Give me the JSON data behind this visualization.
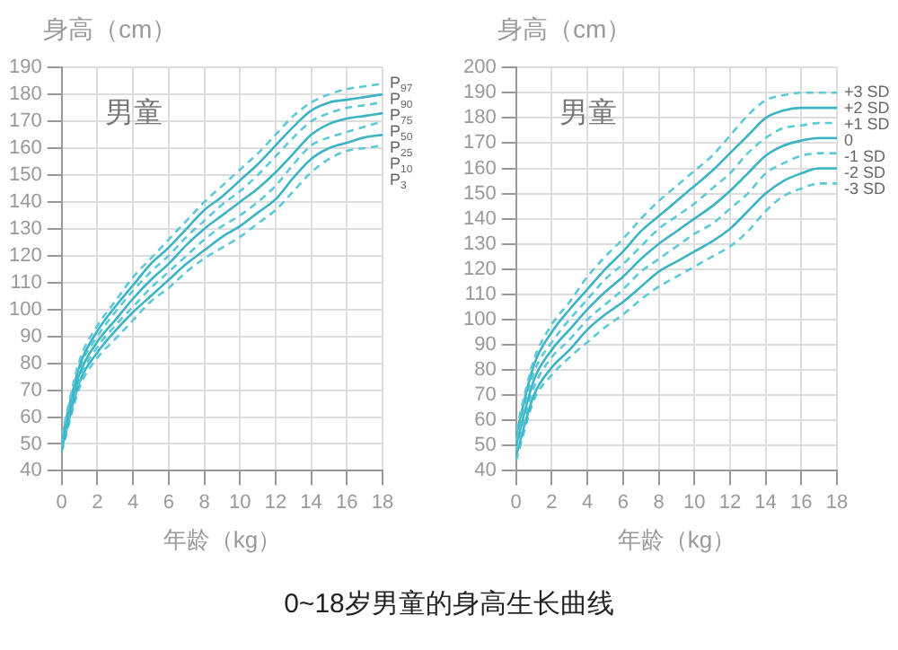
{
  "chart_data": [
    {
      "type": "line",
      "ylabel": "身高（cm）",
      "xlabel": "年龄（kg）",
      "annotations": [
        "男童"
      ],
      "x": [
        0,
        1,
        2,
        3,
        4,
        5,
        6,
        7,
        8,
        9,
        10,
        11,
        12,
        13,
        14,
        15,
        16,
        17,
        18
      ],
      "xlim": [
        0,
        18
      ],
      "xticks": [
        0,
        2,
        4,
        6,
        8,
        10,
        12,
        14,
        16,
        18
      ],
      "ylim": [
        40,
        190
      ],
      "yticks": [
        40,
        50,
        60,
        70,
        80,
        90,
        100,
        110,
        120,
        130,
        140,
        150,
        160,
        170,
        180,
        190
      ],
      "grid": true,
      "legend": false,
      "marker": "none",
      "series": [
        {
          "name": "P$_{97}$",
          "color": "#5cc9d8",
          "line_style": "dashed",
          "values": [
            53,
            81,
            94,
            103,
            112,
            119,
            126,
            133,
            140,
            146,
            152,
            158,
            165,
            172,
            177,
            180,
            182,
            183,
            184
          ]
        },
        {
          "name": "P$_{90}$",
          "color": "#3ab3c4",
          "line_style": "solid",
          "values": [
            52,
            79,
            92,
            101,
            109,
            117,
            123,
            130,
            137,
            142,
            148,
            154,
            161,
            168,
            174,
            177,
            178,
            179,
            180
          ]
        },
        {
          "name": "P$_{75}$",
          "color": "#5cc9d8",
          "line_style": "dashed",
          "values": [
            51,
            78,
            90,
            99,
            107,
            114,
            120,
            127,
            133,
            139,
            144,
            150,
            157,
            164,
            170,
            173,
            175,
            176,
            177
          ]
        },
        {
          "name": "P$_{50}$",
          "color": "#3ab3c4",
          "line_style": "solid",
          "values": [
            50,
            76,
            88,
            96,
            104,
            111,
            117,
            124,
            130,
            135,
            140,
            145,
            151,
            158,
            165,
            169,
            171,
            172,
            173
          ]
        },
        {
          "name": "P$_{25}$",
          "color": "#5cc9d8",
          "line_style": "dashed",
          "values": [
            49,
            74,
            86,
            94,
            101,
            108,
            114,
            120,
            126,
            131,
            135,
            140,
            146,
            154,
            161,
            164,
            166,
            168,
            170
          ]
        },
        {
          "name": "P$_{10}$",
          "color": "#3ab3c4",
          "line_style": "solid",
          "values": [
            48,
            73,
            84,
            92,
            99,
            105,
            111,
            117,
            122,
            127,
            131,
            136,
            141,
            149,
            156,
            160,
            162,
            164,
            165
          ]
        },
        {
          "name": "P$_{3}$",
          "color": "#5cc9d8",
          "line_style": "dashed",
          "values": [
            47,
            71,
            82,
            89,
            96,
            103,
            108,
            114,
            119,
            123,
            127,
            132,
            137,
            144,
            151,
            156,
            159,
            160,
            161
          ]
        }
      ]
    },
    {
      "type": "line",
      "ylabel": "身高（cm）",
      "xlabel": "年龄（kg）",
      "annotations": [
        "男童",
        "0~18岁男童的身高生长曲线"
      ],
      "x": [
        0,
        1,
        2,
        3,
        4,
        5,
        6,
        7,
        8,
        9,
        10,
        11,
        12,
        13,
        14,
        15,
        16,
        17,
        18
      ],
      "xlim": [
        0,
        18
      ],
      "xticks": [
        0,
        2,
        4,
        6,
        8,
        10,
        12,
        14,
        16,
        18
      ],
      "ylim": [
        40,
        200
      ],
      "yticks": [
        40,
        50,
        60,
        70,
        80,
        90,
        100,
        110,
        120,
        130,
        140,
        150,
        160,
        170,
        180,
        190,
        200
      ],
      "grid": true,
      "legend": false,
      "marker": "none",
      "series": [
        {
          "name": "+3 SD",
          "color": "#5cc9d8",
          "line_style": "dashed",
          "values": [
            56,
            84,
            98,
            107,
            117,
            125,
            132,
            140,
            147,
            153,
            159,
            165,
            173,
            181,
            187,
            189,
            190,
            190,
            190
          ]
        },
        {
          "name": "+2 SD",
          "color": "#3ab3c4",
          "line_style": "solid",
          "values": [
            54,
            82,
            95,
            104,
            112,
            120,
            127,
            135,
            141,
            147,
            153,
            159,
            166,
            173,
            180,
            183,
            184,
            184,
            184
          ]
        },
        {
          "name": "+1 SD",
          "color": "#5cc9d8",
          "line_style": "dashed",
          "values": [
            52,
            79,
            91,
            100,
            108,
            116,
            122,
            129,
            136,
            141,
            146,
            152,
            158,
            166,
            172,
            176,
            177,
            178,
            178
          ]
        },
        {
          "name": "0",
          "color": "#3ab3c4",
          "line_style": "solid",
          "values": [
            50,
            76,
            88,
            96,
            104,
            111,
            117,
            124,
            130,
            135,
            140,
            145,
            151,
            158,
            165,
            169,
            171,
            172,
            172
          ]
        },
        {
          "name": "-1 SD",
          "color": "#5cc9d8",
          "line_style": "dashed",
          "values": [
            48,
            73,
            85,
            92,
            100,
            106,
            112,
            119,
            124,
            129,
            134,
            138,
            144,
            150,
            158,
            162,
            165,
            166,
            166
          ]
        },
        {
          "name": "-2 SD",
          "color": "#3ab3c4",
          "line_style": "solid",
          "values": [
            46,
            70,
            81,
            88,
            96,
            102,
            107,
            113,
            119,
            123,
            127,
            131,
            136,
            143,
            150,
            155,
            158,
            160,
            160
          ]
        },
        {
          "name": "-3 SD",
          "color": "#5cc9d8",
          "line_style": "dashed",
          "values": [
            44,
            68,
            78,
            85,
            91,
            97,
            102,
            108,
            113,
            117,
            121,
            125,
            129,
            135,
            143,
            149,
            152,
            154,
            154
          ]
        }
      ]
    }
  ]
}
